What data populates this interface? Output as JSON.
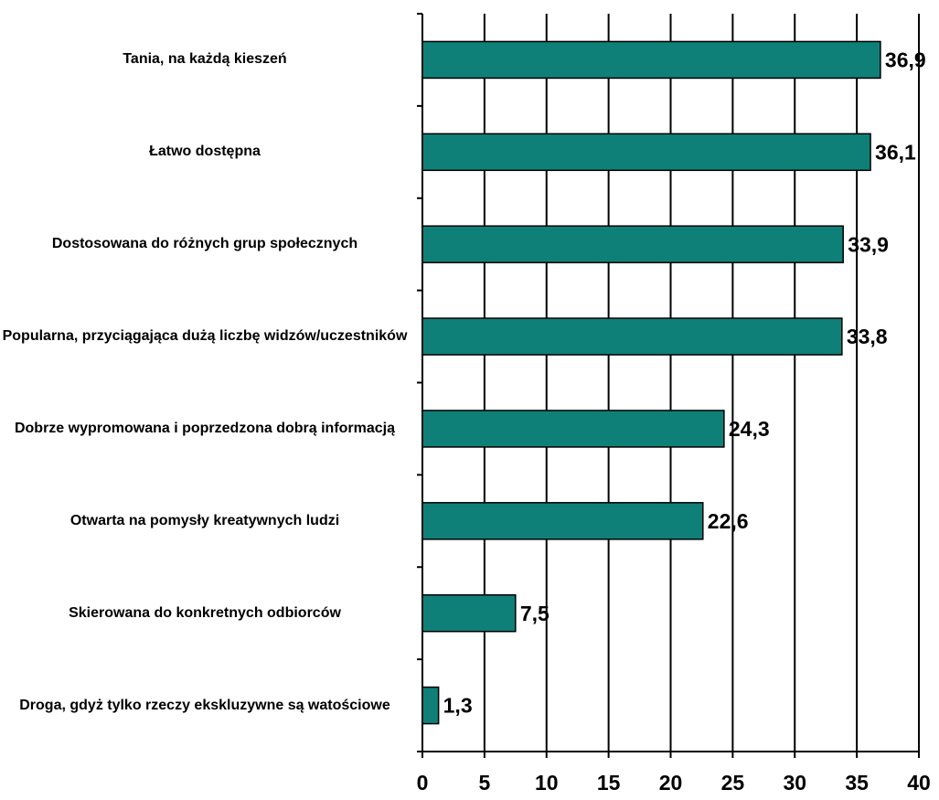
{
  "chart_data": {
    "type": "bar",
    "orientation": "horizontal",
    "categories": [
      "Tania, na każdą kieszeń",
      "Łatwo dostępna",
      "Dostosowana do różnych grup społecznych",
      "Popularna, przyciągająca dużą liczbę widzów/uczestników",
      "Dobrze wypromowana i poprzedzona dobrą informacją",
      "Otwarta na pomysły kreatywnych ludzi",
      "Skierowana do konkretnych odbiorców",
      "Droga, gdyż tylko rzeczy ekskluzywne są watościowe"
    ],
    "values": [
      36.9,
      36.1,
      33.9,
      33.8,
      24.3,
      22.6,
      7.5,
      1.3
    ],
    "value_labels": [
      "36,9",
      "36,1",
      "33,9",
      "33,8",
      "24,3",
      "22,6",
      "7,5",
      "1,3"
    ],
    "color": "#0f8078",
    "xlim": [
      0,
      40
    ],
    "xticks": [
      0,
      5,
      10,
      15,
      20,
      25,
      30,
      35,
      40
    ],
    "grid": true
  }
}
